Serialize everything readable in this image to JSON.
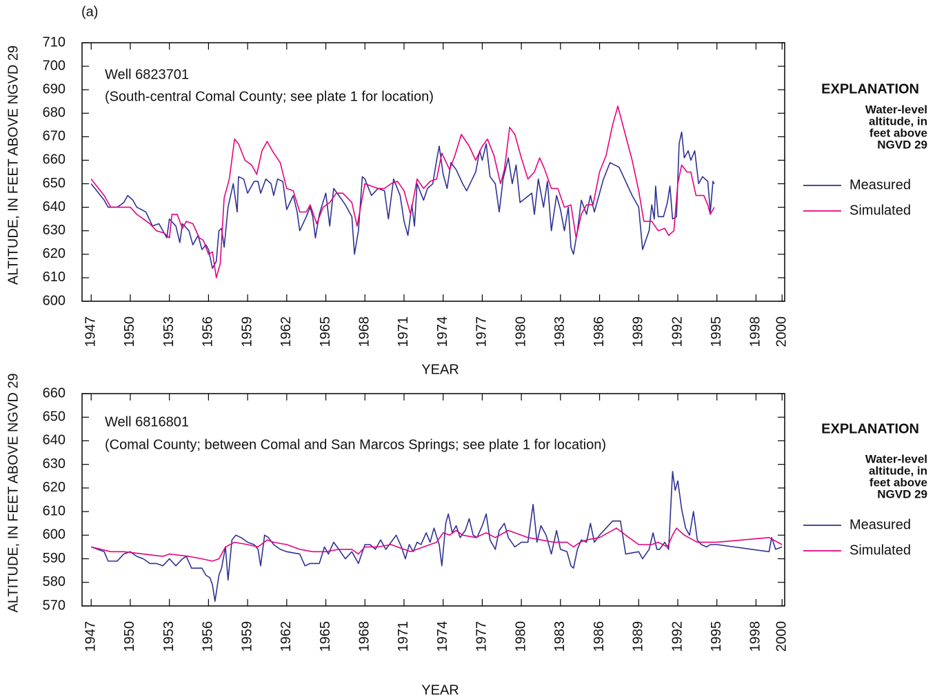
{
  "label": "(a)",
  "chart_data": [
    {
      "type": "line",
      "annotations": [
        "Well 6823701",
        "(South-central Comal County; see plate 1 for location)"
      ],
      "y_label": "ALTITUDE, IN FEET ABOVE NGVD 29",
      "x_label": "YEAR",
      "legend_title": "EXPLANATION",
      "legend_subtitle": [
        "Water-level",
        "altitude, in",
        "feet above",
        "NGVD 29"
      ],
      "xlim": [
        1946.3,
        2000.2
      ],
      "xticks": [
        1947,
        1950,
        1953,
        1956,
        1959,
        1962,
        1965,
        1968,
        1971,
        1974,
        1977,
        1980,
        1983,
        1986,
        1989,
        1992,
        1995,
        1998,
        2000
      ],
      "ylim": [
        600,
        710
      ],
      "yticks": [
        600,
        610,
        620,
        630,
        640,
        650,
        660,
        670,
        680,
        690,
        700,
        710
      ],
      "grid": false,
      "series": [
        {
          "name": "Measured",
          "color": "#2e3192",
          "x": [
            1947.0,
            1948.0,
            1948.3,
            1949.0,
            1949.5,
            1949.8,
            1950.2,
            1950.5,
            1951.2,
            1951.7,
            1952.2,
            1952.8,
            1953.0,
            1953.5,
            1953.8,
            1954.0,
            1954.5,
            1954.8,
            1955.2,
            1955.5,
            1955.8,
            1956.0,
            1956.3,
            1956.6,
            1956.8,
            1957.0,
            1957.2,
            1957.5,
            1957.9,
            1958.2,
            1958.3,
            1958.7,
            1959.0,
            1959.5,
            1959.8,
            1960.0,
            1960.4,
            1960.8,
            1961.0,
            1961.3,
            1961.7,
            1962.0,
            1962.5,
            1962.8,
            1963.0,
            1963.5,
            1963.8,
            1964.0,
            1964.2,
            1964.5,
            1965.0,
            1965.3,
            1965.6,
            1966.0,
            1966.5,
            1967.0,
            1967.2,
            1967.5,
            1967.8,
            1968.0,
            1968.5,
            1969.0,
            1969.5,
            1969.8,
            1970.2,
            1970.7,
            1971.0,
            1971.3,
            1971.6,
            1971.8,
            1972.0,
            1972.5,
            1972.8,
            1973.2,
            1973.5,
            1973.7,
            1974.0,
            1974.3,
            1974.6,
            1975.0,
            1975.5,
            1975.8,
            1976.5,
            1976.8,
            1977.0,
            1977.3,
            1977.6,
            1978.0,
            1978.3,
            1978.6,
            1979.0,
            1979.3,
            1979.6,
            1979.9,
            1980.8,
            1981.0,
            1981.3,
            1981.7,
            1982.0,
            1982.3,
            1982.7,
            1983.0,
            1983.3,
            1983.6,
            1983.8,
            1984.0,
            1984.3,
            1984.6,
            1985.0,
            1985.3,
            1985.6,
            1986.3,
            1986.8,
            1987.5,
            1988.5,
            1989.0,
            1989.3,
            1989.8,
            1990.0,
            1990.2,
            1990.3,
            1990.5,
            1990.9,
            1991.2,
            1991.4,
            1991.6,
            1991.9,
            1992.1,
            1992.3,
            1992.5,
            1992.8,
            1993.0,
            1993.3,
            1993.6,
            1993.9,
            1994.3,
            1994.5,
            1994.7,
            1994.8
          ],
          "values": [
            650,
            643,
            640,
            640,
            642,
            645,
            643,
            640,
            638,
            632,
            633,
            627,
            635,
            632,
            625,
            633,
            630,
            624,
            628,
            622,
            624,
            622,
            614,
            617,
            630,
            631,
            623,
            640,
            650,
            638,
            653,
            652,
            646,
            651,
            651,
            646,
            652,
            650,
            645,
            652,
            651,
            639,
            645,
            638,
            630,
            636,
            640,
            636,
            627,
            637,
            646,
            632,
            648,
            645,
            641,
            636,
            620,
            630,
            653,
            652,
            645,
            648,
            647,
            635,
            652,
            645,
            634,
            628,
            641,
            632,
            650,
            643,
            648,
            650,
            660,
            666,
            654,
            648,
            659,
            656,
            650,
            647,
            655,
            664,
            660,
            667,
            653,
            650,
            638,
            652,
            661,
            650,
            658,
            642,
            646,
            637,
            652,
            640,
            651,
            630,
            645,
            639,
            630,
            640,
            623,
            620,
            630,
            643,
            637,
            645,
            638,
            652,
            659,
            657,
            645,
            640,
            622,
            630,
            641,
            635,
            649,
            636,
            636,
            642,
            649,
            635,
            636,
            667,
            672,
            661,
            664,
            660,
            664,
            650,
            653,
            651,
            638,
            651,
            650
          ]
        },
        {
          "name": "Simulated",
          "color": "#e6007e",
          "x": [
            1947.0,
            1948.0,
            1948.5,
            1950.0,
            1950.5,
            1951.0,
            1951.5,
            1952.0,
            1952.6,
            1953.0,
            1953.2,
            1953.6,
            1954.0,
            1954.3,
            1954.8,
            1955.3,
            1955.6,
            1956.0,
            1956.3,
            1956.6,
            1956.9,
            1957.2,
            1957.6,
            1958.0,
            1958.3,
            1958.8,
            1959.3,
            1959.7,
            1960.1,
            1960.5,
            1960.9,
            1961.5,
            1962.0,
            1962.5,
            1963.0,
            1963.5,
            1963.8,
            1964.3,
            1964.8,
            1965.3,
            1965.8,
            1966.3,
            1967.0,
            1967.4,
            1968.0,
            1968.5,
            1969.0,
            1969.5,
            1970.0,
            1970.5,
            1971.0,
            1971.5,
            1972.0,
            1972.5,
            1973.0,
            1973.5,
            1973.9,
            1974.5,
            1974.9,
            1975.4,
            1976.0,
            1976.5,
            1977.0,
            1977.4,
            1977.9,
            1978.4,
            1978.7,
            1979.1,
            1979.5,
            1980.0,
            1980.5,
            1981.0,
            1981.4,
            1981.8,
            1982.3,
            1982.8,
            1983.3,
            1983.8,
            1984.2,
            1984.6,
            1985.0,
            1985.5,
            1986.0,
            1986.5,
            1987.0,
            1987.4,
            1988.5,
            1989.0,
            1989.4,
            1990.0,
            1990.5,
            1991.0,
            1991.3,
            1991.7,
            1992.0,
            1992.3,
            1992.7,
            1993.0,
            1993.4,
            1994.0,
            1994.3,
            1994.5,
            1994.8
          ],
          "values": [
            652,
            645,
            640,
            640,
            637,
            635,
            633,
            630,
            629,
            627,
            637,
            637,
            631,
            634,
            633,
            627,
            626,
            620,
            621,
            610,
            616,
            644,
            652,
            669,
            667,
            660,
            658,
            654,
            664,
            668,
            664,
            659,
            648,
            647,
            638,
            638,
            641,
            633,
            640,
            642,
            646,
            646,
            642,
            632,
            650,
            649,
            648,
            648,
            650,
            651,
            647,
            637,
            652,
            648,
            651,
            652,
            663,
            656,
            662,
            671,
            666,
            660,
            666,
            669,
            662,
            650,
            656,
            674,
            671,
            661,
            652,
            655,
            661,
            656,
            648,
            648,
            640,
            641,
            627,
            637,
            641,
            641,
            655,
            662,
            675,
            683,
            660,
            647,
            634,
            634,
            630,
            631,
            628,
            630,
            650,
            658,
            655,
            655,
            645,
            645,
            641,
            637,
            640
          ]
        }
      ]
    },
    {
      "type": "line",
      "annotations": [
        "Well 6816801",
        "(Comal County; between Comal and San Marcos Springs; see plate 1 for location)"
      ],
      "y_label": "ALTITUDE, IN FEET ABOVE NGVD 29",
      "x_label": "YEAR",
      "legend_title": "EXPLANATION",
      "legend_subtitle": [
        "Water-level",
        "altitude, in",
        "feet above",
        "NGVD 29"
      ],
      "xlim": [
        1946.3,
        2000.2
      ],
      "xticks": [
        1947,
        1950,
        1953,
        1956,
        1959,
        1962,
        1965,
        1968,
        1971,
        1974,
        1977,
        1980,
        1983,
        1986,
        1989,
        1992,
        1995,
        1998,
        2000
      ],
      "ylim": [
        570,
        660
      ],
      "yticks": [
        570,
        580,
        590,
        600,
        610,
        620,
        630,
        640,
        650,
        660
      ],
      "grid": false,
      "series": [
        {
          "name": "Measured",
          "color": "#2e3192",
          "x": [
            1947.0,
            1948.0,
            1948.3,
            1949.0,
            1949.5,
            1950.0,
            1950.5,
            1951.0,
            1951.5,
            1952.0,
            1952.5,
            1953.0,
            1953.5,
            1954.0,
            1954.3,
            1954.7,
            1955.5,
            1955.8,
            1956.1,
            1956.3,
            1956.5,
            1956.8,
            1957.0,
            1957.3,
            1957.5,
            1957.8,
            1958.1,
            1958.5,
            1959.0,
            1959.5,
            1959.8,
            1960.0,
            1960.3,
            1960.6,
            1961.0,
            1961.5,
            1962.0,
            1963.0,
            1963.4,
            1963.8,
            1964.5,
            1964.9,
            1965.2,
            1965.6,
            1966.0,
            1966.5,
            1967.0,
            1967.5,
            1968.0,
            1968.4,
            1968.8,
            1969.2,
            1969.6,
            1970.0,
            1970.4,
            1970.8,
            1971.1,
            1971.4,
            1971.7,
            1972.0,
            1972.3,
            1972.7,
            1973.0,
            1973.3,
            1973.7,
            1973.9,
            1974.2,
            1974.4,
            1974.7,
            1975.0,
            1975.3,
            1975.7,
            1976.0,
            1976.3,
            1976.6,
            1977.0,
            1977.3,
            1977.6,
            1978.0,
            1978.3,
            1978.7,
            1979.0,
            1979.5,
            1980.0,
            1980.5,
            1980.9,
            1981.2,
            1981.5,
            1981.9,
            1982.3,
            1982.7,
            1983.0,
            1983.5,
            1983.8,
            1984.0,
            1984.3,
            1984.6,
            1985.0,
            1985.3,
            1985.6,
            1986.0,
            1986.5,
            1987.0,
            1987.6,
            1988.0,
            1989.0,
            1989.3,
            1989.8,
            1990.1,
            1990.4,
            1990.6,
            1991.0,
            1991.3,
            1991.6,
            1991.8,
            1992.0,
            1992.3,
            1992.6,
            1992.9,
            1993.2,
            1993.5,
            1993.8,
            1994.2,
            1994.5,
            1995.0,
            1999.0,
            1999.2,
            1999.5,
            2000.0
          ],
          "values": [
            595,
            593,
            589,
            589,
            592,
            593,
            591,
            590,
            588,
            588,
            587,
            590,
            587,
            590,
            591,
            586,
            586,
            583,
            582,
            579,
            572,
            583,
            586,
            595,
            581,
            598,
            600,
            599,
            597,
            596,
            594,
            587,
            600,
            599,
            596,
            594,
            593,
            592,
            587,
            588,
            588,
            595,
            592,
            597,
            594,
            590,
            593,
            588,
            596,
            596,
            594,
            598,
            594,
            597,
            600,
            595,
            590,
            596,
            593,
            597,
            596,
            601,
            597,
            603,
            596,
            587,
            605,
            609,
            601,
            604,
            599,
            602,
            607,
            600,
            599,
            604,
            609,
            598,
            594,
            602,
            605,
            599,
            595,
            597,
            597,
            613,
            597,
            604,
            600,
            592,
            602,
            594,
            593,
            587,
            586,
            594,
            598,
            597,
            605,
            597,
            600,
            603,
            606,
            606,
            592,
            593,
            590,
            594,
            601,
            594,
            594,
            597,
            594,
            627,
            619,
            623,
            611,
            603,
            600,
            610,
            598,
            596,
            595,
            596,
            596,
            593,
            599,
            594,
            595
          ]
        },
        {
          "name": "Simulated",
          "color": "#e6007e",
          "x": [
            1947.0,
            1948.5,
            1949.5,
            1951.0,
            1952.5,
            1953.0,
            1954.5,
            1955.5,
            1956.3,
            1956.8,
            1957.3,
            1958.0,
            1959.0,
            1959.8,
            1960.5,
            1961.0,
            1962.0,
            1963.0,
            1964.0,
            1965.0,
            1966.0,
            1967.0,
            1967.5,
            1968.0,
            1969.0,
            1970.0,
            1971.0,
            1971.5,
            1972.5,
            1973.5,
            1974.0,
            1974.5,
            1975.0,
            1975.5,
            1976.5,
            1977.3,
            1978.0,
            1979.0,
            1979.5,
            1980.5,
            1981.5,
            1982.5,
            1983.5,
            1984.0,
            1984.5,
            1985.0,
            1986.0,
            1987.3,
            1988.0,
            1989.0,
            1990.0,
            1990.5,
            1991.2,
            1991.6,
            1991.9,
            1992.5,
            1993.5,
            1994.5,
            1995.0,
            1999.0,
            2000.0
          ],
          "values": [
            595,
            593,
            593,
            592,
            591,
            592,
            591,
            590,
            589,
            590,
            595,
            597,
            596,
            595,
            598,
            597,
            596,
            594,
            593,
            593,
            594,
            594,
            592,
            595,
            595,
            596,
            594,
            593,
            595,
            597,
            601,
            600,
            602,
            600,
            599,
            601,
            599,
            602,
            601,
            599,
            598,
            597,
            597,
            595,
            597,
            598,
            599,
            603,
            600,
            596,
            596,
            597,
            595,
            600,
            603,
            600,
            597,
            597,
            597,
            599,
            596
          ]
        }
      ]
    }
  ]
}
